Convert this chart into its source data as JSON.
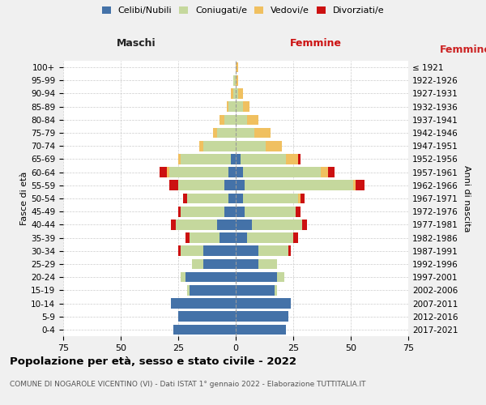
{
  "age_groups": [
    "0-4",
    "5-9",
    "10-14",
    "15-19",
    "20-24",
    "25-29",
    "30-34",
    "35-39",
    "40-44",
    "45-49",
    "50-54",
    "55-59",
    "60-64",
    "65-69",
    "70-74",
    "75-79",
    "80-84",
    "85-89",
    "90-94",
    "95-99",
    "100+"
  ],
  "birth_years": [
    "2017-2021",
    "2012-2016",
    "2007-2011",
    "2002-2006",
    "1997-2001",
    "1992-1996",
    "1987-1991",
    "1982-1986",
    "1977-1981",
    "1972-1976",
    "1967-1971",
    "1962-1966",
    "1957-1961",
    "1952-1956",
    "1947-1951",
    "1942-1946",
    "1937-1941",
    "1932-1936",
    "1927-1931",
    "1922-1926",
    "≤ 1921"
  ],
  "colors": {
    "celibi": "#4472a8",
    "coniugati": "#c5d89d",
    "vedovi": "#f0c060",
    "divorziati": "#cc1111"
  },
  "male": {
    "celibi": [
      27,
      25,
      28,
      20,
      22,
      14,
      14,
      7,
      8,
      5,
      3,
      5,
      3,
      2,
      0,
      0,
      0,
      0,
      0,
      0,
      0
    ],
    "coniugati": [
      0,
      0,
      0,
      1,
      2,
      5,
      10,
      13,
      18,
      19,
      18,
      20,
      26,
      22,
      14,
      8,
      5,
      3,
      1,
      1,
      0
    ],
    "vedovi": [
      0,
      0,
      0,
      0,
      0,
      0,
      0,
      0,
      0,
      0,
      0,
      0,
      1,
      1,
      2,
      2,
      2,
      1,
      1,
      0,
      0
    ],
    "divorziati": [
      0,
      0,
      0,
      0,
      0,
      0,
      1,
      2,
      2,
      1,
      2,
      4,
      3,
      0,
      0,
      0,
      0,
      0,
      0,
      0,
      0
    ]
  },
  "female": {
    "nubili": [
      22,
      23,
      24,
      17,
      18,
      10,
      10,
      5,
      7,
      4,
      3,
      4,
      3,
      2,
      0,
      0,
      0,
      0,
      0,
      0,
      0
    ],
    "coniugate": [
      0,
      0,
      0,
      1,
      3,
      8,
      13,
      20,
      22,
      22,
      24,
      47,
      34,
      20,
      13,
      8,
      5,
      3,
      1,
      0,
      0
    ],
    "vedove": [
      0,
      0,
      0,
      0,
      0,
      0,
      0,
      0,
      0,
      0,
      1,
      1,
      3,
      5,
      7,
      7,
      5,
      3,
      2,
      1,
      1
    ],
    "divorziate": [
      0,
      0,
      0,
      0,
      0,
      0,
      1,
      2,
      2,
      2,
      2,
      4,
      3,
      1,
      0,
      0,
      0,
      0,
      0,
      0,
      0
    ]
  },
  "xlim": 75,
  "title": "Popolazione per età, sesso e stato civile - 2022",
  "subtitle": "COMUNE DI NOGAROLE VICENTINO (VI) - Dati ISTAT 1° gennaio 2022 - Elaborazione TUTTITALIA.IT",
  "ylabel_left": "Fasce di età",
  "ylabel_right": "Anni di nascita",
  "xlabel_left": "Maschi",
  "xlabel_right": "Femmine",
  "bg_color": "#f0f0f0",
  "plot_bg": "#ffffff"
}
